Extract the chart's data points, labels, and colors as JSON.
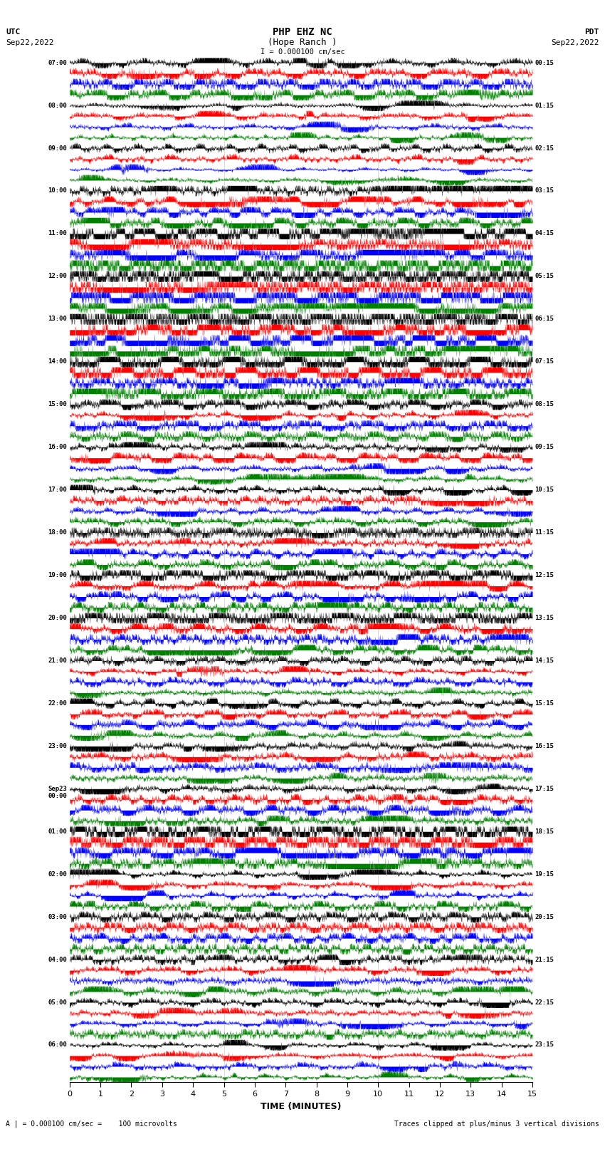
{
  "title_line1": "PHP EHZ NC",
  "title_line2": "(Hope Ranch )",
  "scale_label": "I = 0.000100 cm/sec",
  "left_timezone": "UTC",
  "left_date": "Sep22,2022",
  "right_timezone": "PDT",
  "right_date": "Sep22,2022",
  "xlabel": "TIME (MINUTES)",
  "footer_left": "A | = 0.000100 cm/sec =    100 microvolts",
  "footer_right": "Traces clipped at plus/minus 3 vertical divisions",
  "left_times": [
    "07:00",
    "08:00",
    "09:00",
    "10:00",
    "11:00",
    "12:00",
    "13:00",
    "14:00",
    "15:00",
    "16:00",
    "17:00",
    "18:00",
    "19:00",
    "20:00",
    "21:00",
    "22:00",
    "23:00",
    "Sep23\n00:00",
    "01:00",
    "02:00",
    "03:00",
    "04:00",
    "05:00",
    "06:00"
  ],
  "right_times": [
    "00:15",
    "01:15",
    "02:15",
    "03:15",
    "04:15",
    "05:15",
    "06:15",
    "07:15",
    "08:15",
    "09:15",
    "10:15",
    "11:15",
    "12:15",
    "13:15",
    "14:15",
    "15:15",
    "16:15",
    "17:15",
    "18:15",
    "19:15",
    "20:15",
    "21:15",
    "22:15",
    "23:15"
  ],
  "num_rows": 24,
  "colors": [
    "black",
    "red",
    "blue",
    "green"
  ],
  "bg_color": "white",
  "xmin": 0,
  "xmax": 15,
  "xticks": [
    0,
    1,
    2,
    3,
    4,
    5,
    6,
    7,
    8,
    9,
    10,
    11,
    12,
    13,
    14,
    15
  ],
  "high_amp_rows": [
    4,
    5,
    6
  ],
  "medium_amp_rows": [
    3,
    7,
    12,
    13,
    18
  ],
  "num_points": 3000
}
